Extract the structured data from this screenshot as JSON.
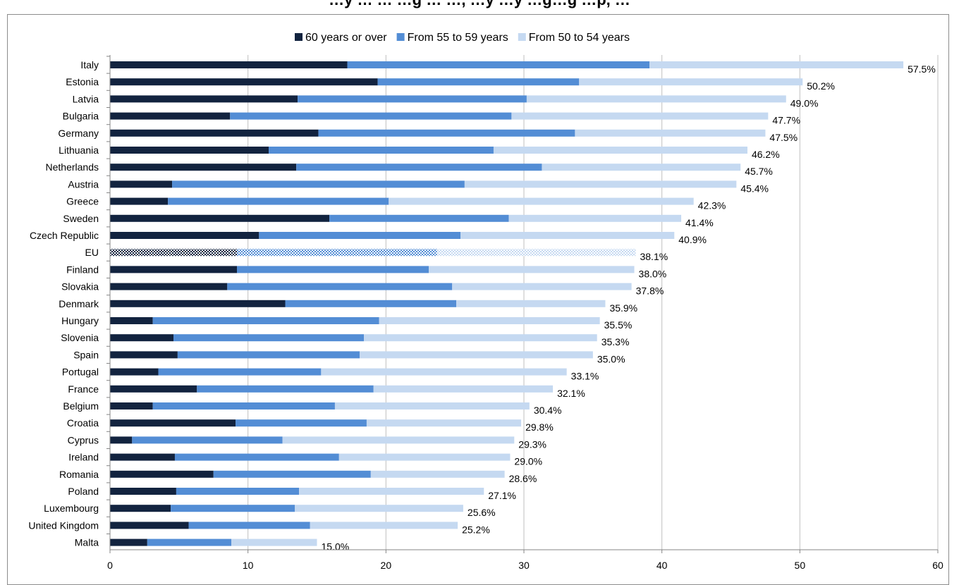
{
  "chart_data": {
    "type": "bar",
    "orientation": "horizontal",
    "stacked": true,
    "title": "…y … … …g … …, …y …y …g…g …p, …",
    "xlim": [
      0,
      60
    ],
    "x_ticks": [
      "0",
      "10",
      "20",
      "30",
      "40",
      "50",
      "60"
    ],
    "grid": "vertical",
    "legend_position": "top",
    "categories": [
      "Italy",
      "Estonia",
      "Latvia",
      "Bulgaria",
      "Germany",
      "Lithuania",
      "Netherlands",
      "Austria",
      "Greece",
      "Sweden",
      "Czech Republic",
      "EU",
      "Finland",
      "Slovakia",
      "Denmark",
      "Hungary",
      "Slovenia",
      "Spain",
      "Portugal",
      "France",
      "Belgium",
      "Croatia",
      "Cyprus",
      "Ireland",
      "Romania",
      "Poland",
      "Luxembourg",
      "United Kingdom",
      "Malta"
    ],
    "highlighted_category": "EU",
    "series": [
      {
        "name": "60 years or over",
        "color": "#12233f",
        "values": [
          17.2,
          19.4,
          13.6,
          8.7,
          15.1,
          11.5,
          13.5,
          4.5,
          4.2,
          15.9,
          10.8,
          9.2,
          9.2,
          8.5,
          12.7,
          3.1,
          4.6,
          4.9,
          3.5,
          6.3,
          3.1,
          9.1,
          1.6,
          4.7,
          7.5,
          4.8,
          4.4,
          5.7,
          2.7
        ]
      },
      {
        "name": "From 55 to 59 years",
        "color": "#538dd5",
        "values": [
          21.9,
          14.6,
          16.6,
          20.4,
          18.6,
          16.3,
          17.8,
          21.2,
          16.0,
          13.0,
          14.6,
          14.5,
          13.9,
          16.3,
          12.4,
          16.4,
          13.8,
          13.2,
          11.8,
          12.8,
          13.2,
          9.5,
          10.9,
          11.9,
          11.4,
          8.9,
          9.0,
          8.8,
          6.1
        ]
      },
      {
        "name": "From 50 to 54 years",
        "color": "#c5d9f1",
        "values": [
          18.4,
          16.2,
          18.8,
          18.6,
          13.8,
          18.4,
          14.4,
          19.7,
          22.1,
          12.5,
          15.5,
          14.4,
          14.9,
          13.0,
          10.8,
          16.0,
          16.9,
          16.9,
          17.8,
          13.0,
          14.1,
          11.2,
          16.8,
          12.4,
          9.7,
          13.4,
          12.2,
          10.7,
          6.2
        ]
      }
    ],
    "totals": [
      57.5,
      50.2,
      49.0,
      47.7,
      47.5,
      46.2,
      45.7,
      45.4,
      42.3,
      41.4,
      40.9,
      38.1,
      38.0,
      37.8,
      35.9,
      35.5,
      35.3,
      35.0,
      33.1,
      32.1,
      30.4,
      29.8,
      29.3,
      29.0,
      28.6,
      27.1,
      25.6,
      25.2,
      15.0
    ],
    "total_labels": [
      "57.5%",
      "50.2%",
      "49.0%",
      "47.7%",
      "47.5%",
      "46.2%",
      "45.7%",
      "45.4%",
      "42.3%",
      "41.4%",
      "40.9%",
      "38.1%",
      "38.0%",
      "37.8%",
      "35.9%",
      "35.5%",
      "35.3%",
      "35.0%",
      "33.1%",
      "32.1%",
      "30.4%",
      "29.8%",
      "29.3%",
      "29.0%",
      "28.6%",
      "27.1%",
      "25.6%",
      "25.2%",
      "15.0%"
    ]
  }
}
